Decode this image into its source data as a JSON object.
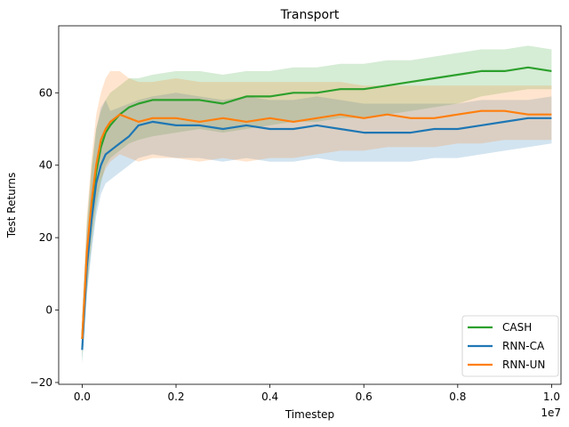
{
  "chart_data": {
    "type": "line",
    "title": "Transport",
    "xlabel": "Timestep",
    "ylabel": "Test Returns",
    "x_offset_text": "1e7",
    "xlim": [
      -0.05,
      1.02
    ],
    "ylim": [
      -20.5,
      78.5
    ],
    "xticks": [
      0.0,
      0.2,
      0.4,
      0.6,
      0.8,
      1.0
    ],
    "xtick_labels": [
      "0.0",
      "0.2",
      "0.4",
      "0.6",
      "0.8",
      "1.0"
    ],
    "yticks": [
      -20,
      0,
      20,
      40,
      60
    ],
    "ytick_labels": [
      "−20",
      "0",
      "20",
      "40",
      "60"
    ],
    "grid": false,
    "legend_position": "lower-right",
    "x": [
      0.0,
      0.01,
      0.02,
      0.03,
      0.04,
      0.05,
      0.06,
      0.08,
      0.1,
      0.12,
      0.15,
      0.2,
      0.25,
      0.3,
      0.35,
      0.4,
      0.45,
      0.5,
      0.55,
      0.6,
      0.65,
      0.7,
      0.75,
      0.8,
      0.85,
      0.9,
      0.95,
      1.0
    ],
    "series": [
      {
        "name": "CASH",
        "color": "#2ca02c",
        "values": [
          -8,
          15,
          28,
          38,
          45,
          49,
          51,
          54,
          56,
          57,
          58,
          58,
          58,
          57,
          59,
          59,
          60,
          60,
          61,
          61,
          62,
          63,
          64,
          65,
          66,
          66,
          67,
          66
        ],
        "band_low": [
          -15,
          5,
          18,
          28,
          35,
          40,
          42,
          44,
          46,
          47,
          48,
          49,
          50,
          49,
          50,
          51,
          52,
          52,
          53,
          53,
          54,
          55,
          56,
          57,
          59,
          60,
          61,
          61
        ],
        "band_high": [
          -2,
          24,
          40,
          50,
          55,
          58,
          60,
          62,
          64,
          64,
          65,
          66,
          66,
          65,
          66,
          66,
          67,
          67,
          68,
          68,
          69,
          69,
          70,
          71,
          72,
          72,
          73,
          72
        ]
      },
      {
        "name": "RNN-CA",
        "color": "#1f77b4",
        "values": [
          -11,
          12,
          25,
          35,
          40,
          43,
          44,
          46,
          48,
          51,
          52,
          51,
          51,
          50,
          51,
          50,
          50,
          51,
          50,
          49,
          49,
          49,
          50,
          50,
          51,
          52,
          53,
          53
        ],
        "band_low": [
          -14,
          4,
          16,
          26,
          32,
          35,
          36,
          38,
          40,
          42,
          43,
          42,
          42,
          41,
          42,
          41,
          41,
          42,
          41,
          41,
          41,
          41,
          42,
          42,
          43,
          44,
          45,
          46
        ],
        "band_high": [
          -7,
          22,
          38,
          50,
          56,
          58,
          55,
          56,
          57,
          58,
          59,
          60,
          59,
          58,
          59,
          58,
          58,
          59,
          58,
          57,
          57,
          57,
          57,
          57,
          58,
          58,
          58,
          59
        ]
      },
      {
        "name": "RNN-UN",
        "color": "#ff7f0e",
        "values": [
          -8,
          16,
          30,
          40,
          47,
          50,
          52,
          54,
          53,
          52,
          53,
          53,
          52,
          53,
          52,
          53,
          52,
          53,
          54,
          53,
          54,
          53,
          53,
          54,
          55,
          55,
          54,
          54
        ],
        "band_low": [
          -12,
          6,
          20,
          30,
          36,
          39,
          41,
          43,
          42,
          41,
          42,
          42,
          41,
          42,
          41,
          42,
          42,
          43,
          44,
          44,
          45,
          45,
          45,
          46,
          46,
          47,
          47,
          47
        ],
        "band_high": [
          -3,
          26,
          42,
          54,
          60,
          64,
          66,
          66,
          64,
          63,
          63,
          64,
          63,
          63,
          63,
          63,
          63,
          63,
          63,
          62,
          62,
          62,
          62,
          62,
          62,
          62,
          62,
          62
        ]
      }
    ]
  }
}
